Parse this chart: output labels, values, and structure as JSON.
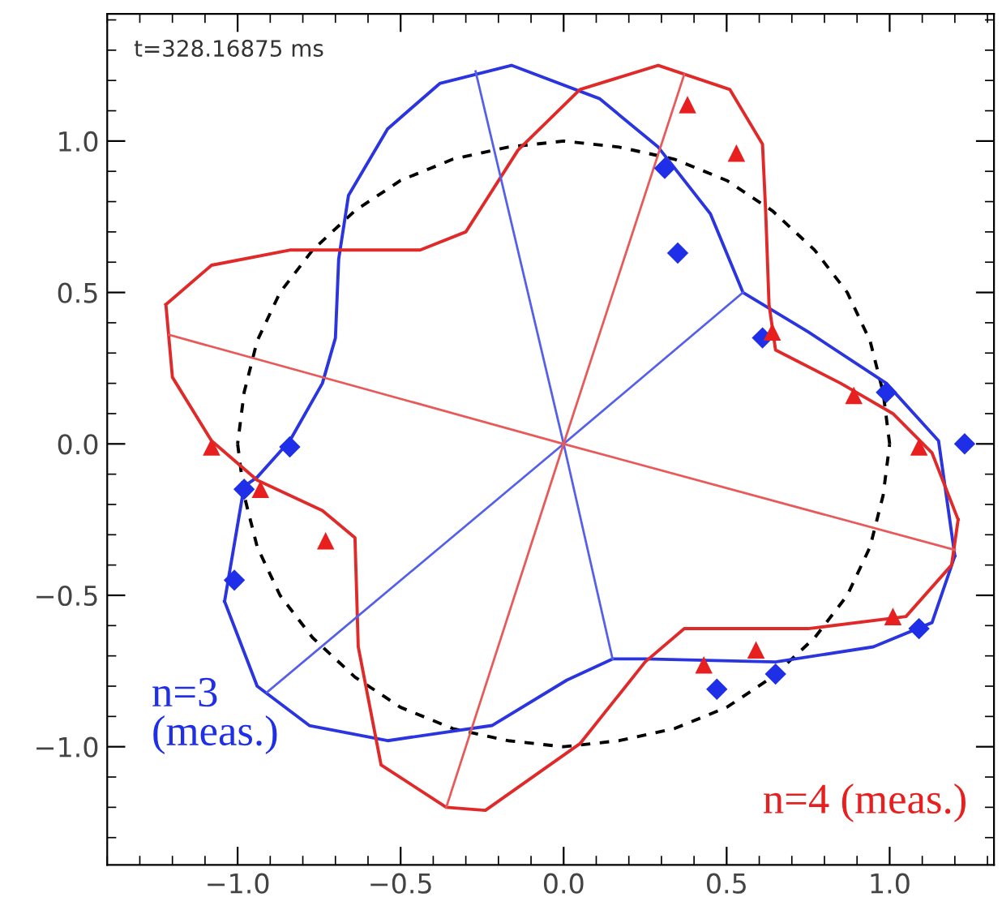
{
  "chart_data": {
    "type": "line",
    "annotations": [
      "t=328.16875 ms"
    ],
    "xlim": [
      -1.4,
      1.32
    ],
    "ylim": [
      -1.39,
      1.42
    ],
    "xticks": [
      {
        "value": -1.0,
        "label": "−1.0"
      },
      {
        "value": -0.5,
        "label": "−0.5"
      },
      {
        "value": 0,
        "label": "0.0"
      },
      {
        "value": 0.5,
        "label": "0.5"
      },
      {
        "value": 1.0,
        "label": "1.0"
      }
    ],
    "yticks": [
      {
        "value": -1.0,
        "label": "−1.0"
      },
      {
        "value": -0.5,
        "label": "−0.5"
      },
      {
        "value": 0,
        "label": "0.0"
      },
      {
        "value": 0.5,
        "label": "0.5"
      },
      {
        "value": 1.0,
        "label": "1.0"
      }
    ],
    "grid": false,
    "legend": false,
    "series": [
      {
        "line_style": "dashed",
        "color": "#000000",
        "x": [
          1,
          0.98,
          0.94,
          0.87,
          0.77,
          0.64,
          0.5,
          0.34,
          0.17,
          0,
          -0.17,
          -0.34,
          -0.5,
          -0.64,
          -0.77,
          -0.87,
          -0.94,
          -0.98,
          -1,
          null,
          -1,
          -0.98,
          -0.94,
          -0.87,
          -0.77,
          -0.64,
          -0.5,
          -0.34,
          -0.17,
          0,
          0.17,
          0.34,
          0.5,
          0.64,
          0.77,
          0.87,
          0.94,
          0.98,
          1
        ],
        "values": [
          0,
          0.17,
          0.34,
          0.5,
          0.64,
          0.77,
          0.87,
          0.94,
          0.98,
          1,
          0.98,
          0.94,
          0.87,
          0.77,
          0.64,
          0.5,
          0.34,
          0.17,
          0,
          null,
          0,
          -0.17,
          -0.34,
          -0.5,
          -0.64,
          -0.77,
          -0.87,
          -0.94,
          -0.98,
          -1,
          -0.98,
          -0.94,
          -0.87,
          -0.77,
          -0.64,
          -0.5,
          -0.34,
          -0.17,
          0
        ]
      },
      {
        "color": "#2a35e0",
        "x": [
          -1.04,
          -0.98,
          -0.94,
          -0.84,
          -0.74,
          -0.7,
          -0.69,
          -0.66,
          -0.54,
          -0.38,
          -0.16,
          0.11,
          0.29,
          0.45,
          0.55,
          0.75,
          0.99,
          1.15,
          1.2,
          null,
          1.2,
          1.13,
          0.95,
          0.65,
          0.25,
          0.15,
          0.01,
          -0.22,
          -0.54,
          -0.78,
          -0.94,
          -1.04
        ],
        "values": [
          -0.52,
          -0.14,
          -0.11,
          0.01,
          0.2,
          0.35,
          0.61,
          0.82,
          1.04,
          1.19,
          1.25,
          1.14,
          0.98,
          0.76,
          0.5,
          0.37,
          0.2,
          0.01,
          -0.37,
          null,
          -0.37,
          -0.59,
          -0.67,
          -0.72,
          -0.71,
          -0.71,
          -0.78,
          -0.93,
          -0.98,
          -0.93,
          -0.8,
          -0.52
        ]
      },
      {
        "color": "#e02a2a",
        "x": [
          -1.22,
          -1.08,
          -0.84,
          -0.44,
          -0.3,
          -0.14,
          0.05,
          0.29,
          0.51,
          0.61,
          0.62,
          0.63,
          0.65,
          0.85,
          1.01,
          1.13,
          1.21,
          null,
          1.21,
          1.19,
          1.05,
          0.75,
          0.37,
          0.25,
          0.05,
          -0.24,
          -0.36,
          -0.56,
          -0.63,
          -0.64,
          -0.74,
          -0.94,
          -1.08,
          -1.2,
          -1.22
        ],
        "values": [
          0.46,
          0.59,
          0.64,
          0.64,
          0.7,
          0.97,
          1.17,
          1.25,
          1.17,
          0.99,
          0.76,
          0.46,
          0.31,
          0.2,
          0.1,
          -0.03,
          -0.25,
          null,
          -0.25,
          -0.4,
          -0.57,
          -0.61,
          -0.61,
          -0.72,
          -0.99,
          -1.21,
          -1.2,
          -1.06,
          -0.67,
          -0.31,
          -0.22,
          -0.12,
          0.01,
          0.22,
          0.46
        ]
      },
      {
        "color": "#5560ea",
        "x": [
          -0.27,
          0,
          0.15
        ],
        "values": [
          1.23,
          0,
          -0.71
        ]
      },
      {
        "color": "#5560ea",
        "x": [
          -0.91,
          0,
          0.55
        ],
        "values": [
          -0.82,
          0,
          0.5
        ]
      },
      {
        "color": "#e85a5a",
        "x": [
          -0.36,
          0,
          0.37
        ],
        "values": [
          -1.2,
          0,
          1.22
        ]
      },
      {
        "color": "#e85a5a",
        "x": [
          -1.21,
          0,
          1.2
        ],
        "values": [
          0.36,
          0,
          -0.35
        ]
      },
      {
        "type": "scatter",
        "name": "n=3\n(meas.)",
        "marker": "diamond",
        "color": "#1f2fe8",
        "x": [
          0.31,
          0.35,
          0.61,
          0.99,
          1.23,
          -0.84,
          -0.98,
          -1.01,
          0.47,
          0.65,
          1.09
        ],
        "values": [
          0.91,
          0.63,
          0.35,
          0.17,
          0.0,
          -0.01,
          -0.15,
          -0.45,
          -0.81,
          -0.76,
          -0.61
        ]
      },
      {
        "type": "scatter",
        "name": "n=4 (meas.)",
        "marker": "triangle",
        "color": "#e81f1f",
        "x": [
          0.38,
          0.53,
          0.64,
          0.89,
          1.09,
          -1.08,
          -0.93,
          -0.73,
          0.43,
          0.59,
          1.01
        ],
        "values": [
          1.12,
          0.96,
          0.37,
          0.16,
          -0.01,
          -0.01,
          -0.15,
          -0.32,
          -0.73,
          -0.68,
          -0.57
        ]
      }
    ]
  }
}
